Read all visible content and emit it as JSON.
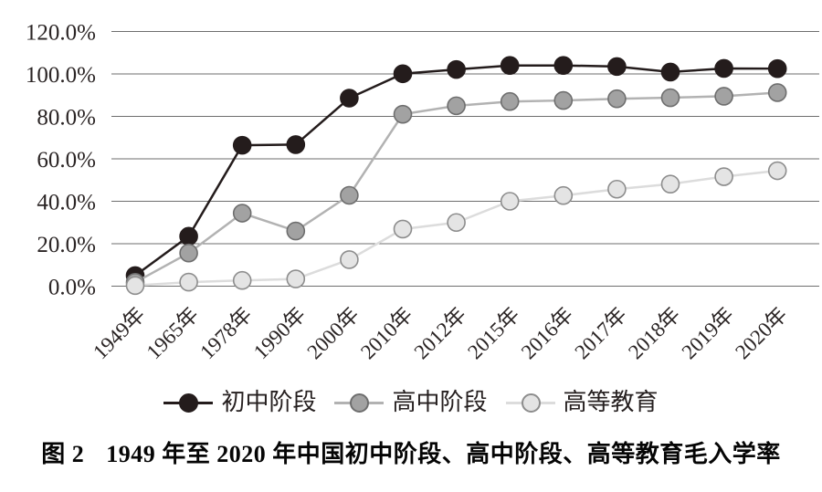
{
  "figure": {
    "caption_label": "图 2",
    "caption_text": "1949 年至 2020 年中国初中阶段、高中阶段、高等教育毛入学率"
  },
  "chart_data": {
    "type": "line",
    "title": "图 2 1949 年至 2020 年中国初中阶段、高中阶段、高等教育毛入学率",
    "xlabel": "",
    "ylabel": "",
    "ylim": [
      0,
      120
    ],
    "ytick_step": 20,
    "ytick_labels": [
      "0.0%",
      "20.0%",
      "40.0%",
      "60.0%",
      "80.0%",
      "100.0%",
      "120.0%"
    ],
    "grid": true,
    "gridline_color": "#6e6e6e",
    "legend_position": "bottom",
    "categories": [
      "1949年",
      "1965年",
      "1978年",
      "1990年",
      "2000年",
      "2010年",
      "2012年",
      "2015年",
      "2016年",
      "2017年",
      "2018年",
      "2019年",
      "2020年"
    ],
    "series": [
      {
        "id": "junior-secondary",
        "name": "初中阶段",
        "values": [
          5.0,
          23.5,
          66.4,
          66.7,
          88.6,
          100.1,
          102.1,
          104.0,
          104.0,
          103.5,
          100.9,
          102.6,
          102.5
        ],
        "line_color": "#241c1c",
        "marker_fill": "#241c1c",
        "marker_stroke": "#241c1c"
      },
      {
        "id": "senior-secondary",
        "name": "高中阶段",
        "values": [
          1.8,
          15.6,
          34.4,
          26.0,
          42.8,
          81.0,
          85.0,
          87.0,
          87.5,
          88.3,
          88.8,
          89.5,
          91.2
        ],
        "line_color": "#b2b2b2",
        "marker_fill": "#a2a2a2",
        "marker_stroke": "#6e6e6e"
      },
      {
        "id": "higher-education",
        "name": "高等教育",
        "values": [
          0.3,
          1.9,
          2.7,
          3.4,
          12.5,
          26.9,
          30.0,
          40.0,
          42.7,
          45.7,
          48.1,
          51.6,
          54.4
        ],
        "line_color": "#dcdcdc",
        "marker_fill": "#e4e4e4",
        "marker_stroke": "#8d8d8d"
      }
    ]
  }
}
